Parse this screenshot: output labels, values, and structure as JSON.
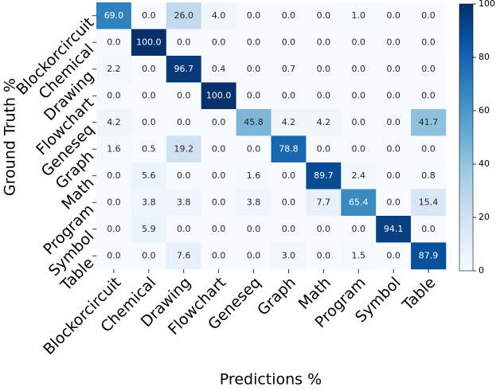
{
  "chart_data": {
    "type": "heatmap",
    "x_label": "Predictions %",
    "y_label": "Ground Truth %",
    "x_categories": [
      "Blockorcircuit",
      "Chemical",
      "Drawing",
      "Flowchart",
      "Geneseq",
      "Graph",
      "Math",
      "Program",
      "Symbol",
      "Table"
    ],
    "y_categories": [
      "Blockorcircuit",
      "Chemical",
      "Drawing",
      "Flowchart",
      "Geneseq",
      "Graph",
      "Math",
      "Program",
      "Symbol",
      "Table"
    ],
    "values": [
      [
        69.0,
        0.0,
        26.0,
        4.0,
        0.0,
        0.0,
        0.0,
        1.0,
        0.0,
        0.0
      ],
      [
        0.0,
        100.0,
        0.0,
        0.0,
        0.0,
        0.0,
        0.0,
        0.0,
        0.0,
        0.0
      ],
      [
        2.2,
        0.0,
        96.7,
        0.4,
        0.0,
        0.7,
        0.0,
        0.0,
        0.0,
        0.0
      ],
      [
        0.0,
        0.0,
        0.0,
        100.0,
        0.0,
        0.0,
        0.0,
        0.0,
        0.0,
        0.0
      ],
      [
        4.2,
        0.0,
        0.0,
        0.0,
        45.8,
        4.2,
        4.2,
        0.0,
        0.0,
        41.7
      ],
      [
        1.6,
        0.5,
        19.2,
        0.0,
        0.0,
        78.8,
        0.0,
        0.0,
        0.0,
        0.0
      ],
      [
        0.0,
        5.6,
        0.0,
        0.0,
        1.6,
        0.0,
        89.7,
        2.4,
        0.0,
        0.8
      ],
      [
        0.0,
        3.8,
        3.8,
        0.0,
        3.8,
        0.0,
        7.7,
        65.4,
        0.0,
        15.4
      ],
      [
        0.0,
        5.9,
        0.0,
        0.0,
        0.0,
        0.0,
        0.0,
        0.0,
        94.1,
        0.0
      ],
      [
        0.0,
        0.0,
        7.6,
        0.0,
        0.0,
        3.0,
        0.0,
        1.5,
        0.0,
        87.9
      ]
    ],
    "value_labels": [
      [
        "69.0",
        "0.0",
        "26.0",
        "4.0",
        "0.0",
        "0.0",
        "0.0",
        "1.0",
        "0.0",
        "0.0"
      ],
      [
        "0.0",
        "100.0",
        "0.0",
        "0.0",
        "0.0",
        "0.0",
        "0.0",
        "0.0",
        "0.0",
        "0.0"
      ],
      [
        "2.2",
        "0.0",
        "96.7",
        "0.4",
        "0.0",
        "0.7",
        "0.0",
        "0.0",
        "0.0",
        "0.0"
      ],
      [
        "0.0",
        "0.0",
        "0.0",
        "100.0",
        "0.0",
        "0.0",
        "0.0",
        "0.0",
        "0.0",
        "0.0"
      ],
      [
        "4.2",
        "0.0",
        "0.0",
        "0.0",
        "45.8",
        "4.2",
        "4.2",
        "0.0",
        "0.0",
        "41.7"
      ],
      [
        "1.6",
        "0.5",
        "19.2",
        "0.0",
        "0.0",
        "78.8",
        "0.0",
        "0.0",
        "0.0",
        "0.0"
      ],
      [
        "0.0",
        "5.6",
        "0.0",
        "0.0",
        "1.6",
        "0.0",
        "89.7",
        "2.4",
        "0.0",
        "0.8"
      ],
      [
        "0.0",
        "3.8",
        "3.8",
        "0.0",
        "3.8",
        "0.0",
        "7.7",
        "65.4",
        "0.0",
        "15.4"
      ],
      [
        "0.0",
        "5.9",
        "0.0",
        "0.0",
        "0.0",
        "0.0",
        "0.0",
        "0.0",
        "94.1",
        "0.0"
      ],
      [
        "0.0",
        "0.0",
        "7.6",
        "0.0",
        "0.0",
        "3.0",
        "0.0",
        "1.5",
        "0.0",
        "87.9"
      ]
    ],
    "colormap": "Blues",
    "clim": [
      0,
      100
    ],
    "cticks": [
      0,
      20,
      40,
      60,
      80,
      100
    ]
  }
}
